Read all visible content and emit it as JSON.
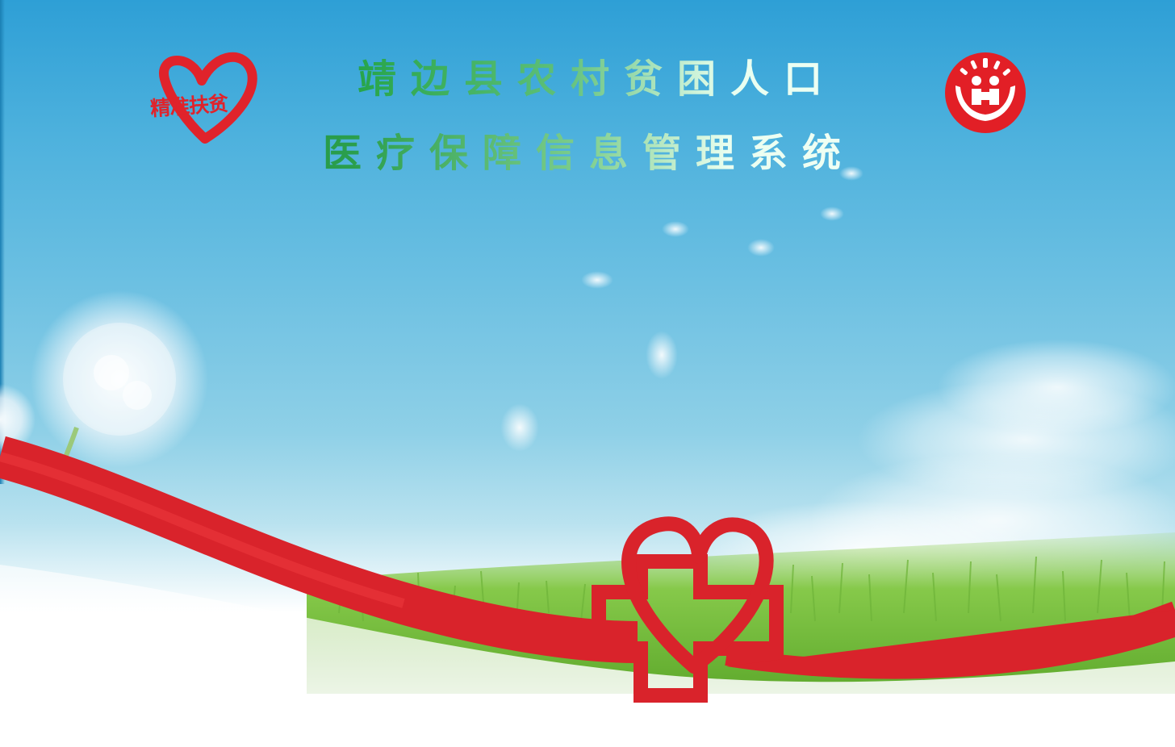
{
  "title": {
    "line1": "靖边县农村贫困人口",
    "line2": "医疗保障信息管理系统"
  },
  "logo_left": {
    "text": "精准扶贫",
    "icon": "heart-icon"
  },
  "logo_right": {
    "icon": "hands-caring-people-emblem-icon"
  },
  "decor": {
    "ribbon_icon": "red-cross-heart-ribbon-icon",
    "dandelion_icon": "dandelion-icon"
  },
  "colors": {
    "brand_red": "#e0232b",
    "title_green": "#1f9a45",
    "sky_blue": "#4db1dd",
    "grass_green": "#7cc242"
  }
}
